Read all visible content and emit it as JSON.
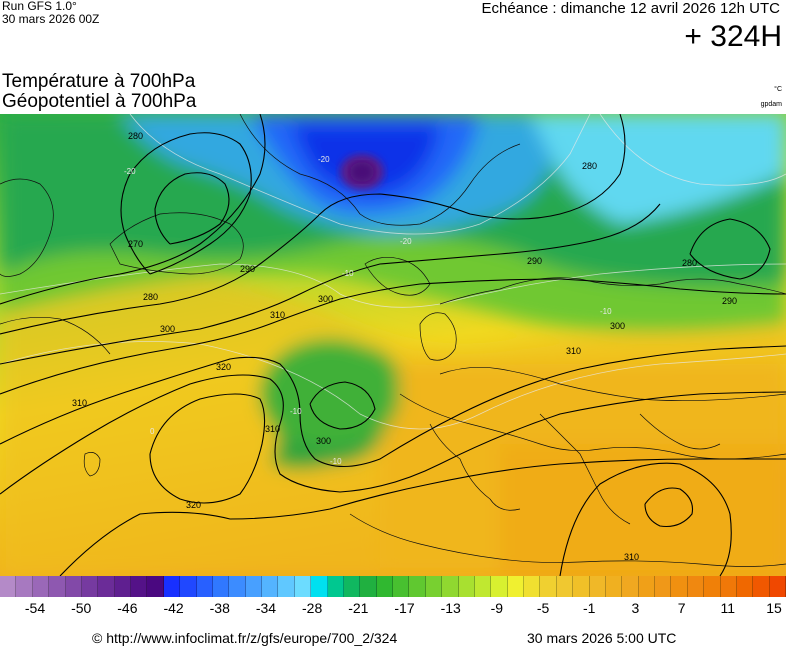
{
  "header": {
    "run_title": "Run GFS 1.0°",
    "run_date": "30 mars 2026 00Z",
    "echeance": "Echéance : dimanche 12 avril 2026 12h UTC",
    "leadtime": "+ 324H",
    "title_line1": "Température à 700hPa",
    "title_line2": "Géopotentiel à 700hPa",
    "unit_temp": "°C",
    "unit_geo": "gpdam"
  },
  "map": {
    "contour_labels": [
      "280",
      "270",
      "280",
      "290",
      "300",
      "310",
      "320",
      "310",
      "300",
      "310",
      "320",
      "290",
      "280",
      "290",
      "300",
      "310",
      "300",
      "310",
      "280"
    ],
    "isotherm_labels": [
      "-20",
      "-20",
      "-20",
      "-10",
      "-10",
      "-10",
      "-10",
      "0"
    ]
  },
  "colorbar": {
    "colors": [
      "#b48ac8",
      "#a779c0",
      "#9a68b8",
      "#8e58b0",
      "#8249a8",
      "#763aa0",
      "#6b2c98",
      "#5f1f90",
      "#541288",
      "#4a0880",
      "#1830ff",
      "#2048ff",
      "#2860ff",
      "#3078ff",
      "#3c8cff",
      "#48a0ff",
      "#54b4ff",
      "#60c8ff",
      "#6cdcff",
      "#00e0f0",
      "#00c890",
      "#10b860",
      "#20b040",
      "#30b830",
      "#48c030",
      "#60c830",
      "#78d030",
      "#90d830",
      "#a8e030",
      "#c0e830",
      "#d8f030",
      "#f0f030",
      "#f0e030",
      "#f0d030",
      "#f0c830",
      "#f0c028",
      "#f0b828",
      "#f0b020",
      "#f0a820",
      "#f0a018",
      "#f09818",
      "#f09010",
      "#f08810",
      "#f08008",
      "#f07808",
      "#f06800",
      "#f05800",
      "#f04800"
    ],
    "tick_labels": [
      "-54",
      "-50",
      "-46",
      "-42",
      "-38",
      "-34",
      "-28",
      "-21",
      "-17",
      "-13",
      "-9",
      "-5",
      "-1",
      "3",
      "7",
      "11",
      "15"
    ]
  },
  "footer": {
    "url": "© http://www.infoclimat.fr/z/gfs/europe/700_2/324",
    "timestamp": "30 mars 2026  5:00 UTC"
  }
}
